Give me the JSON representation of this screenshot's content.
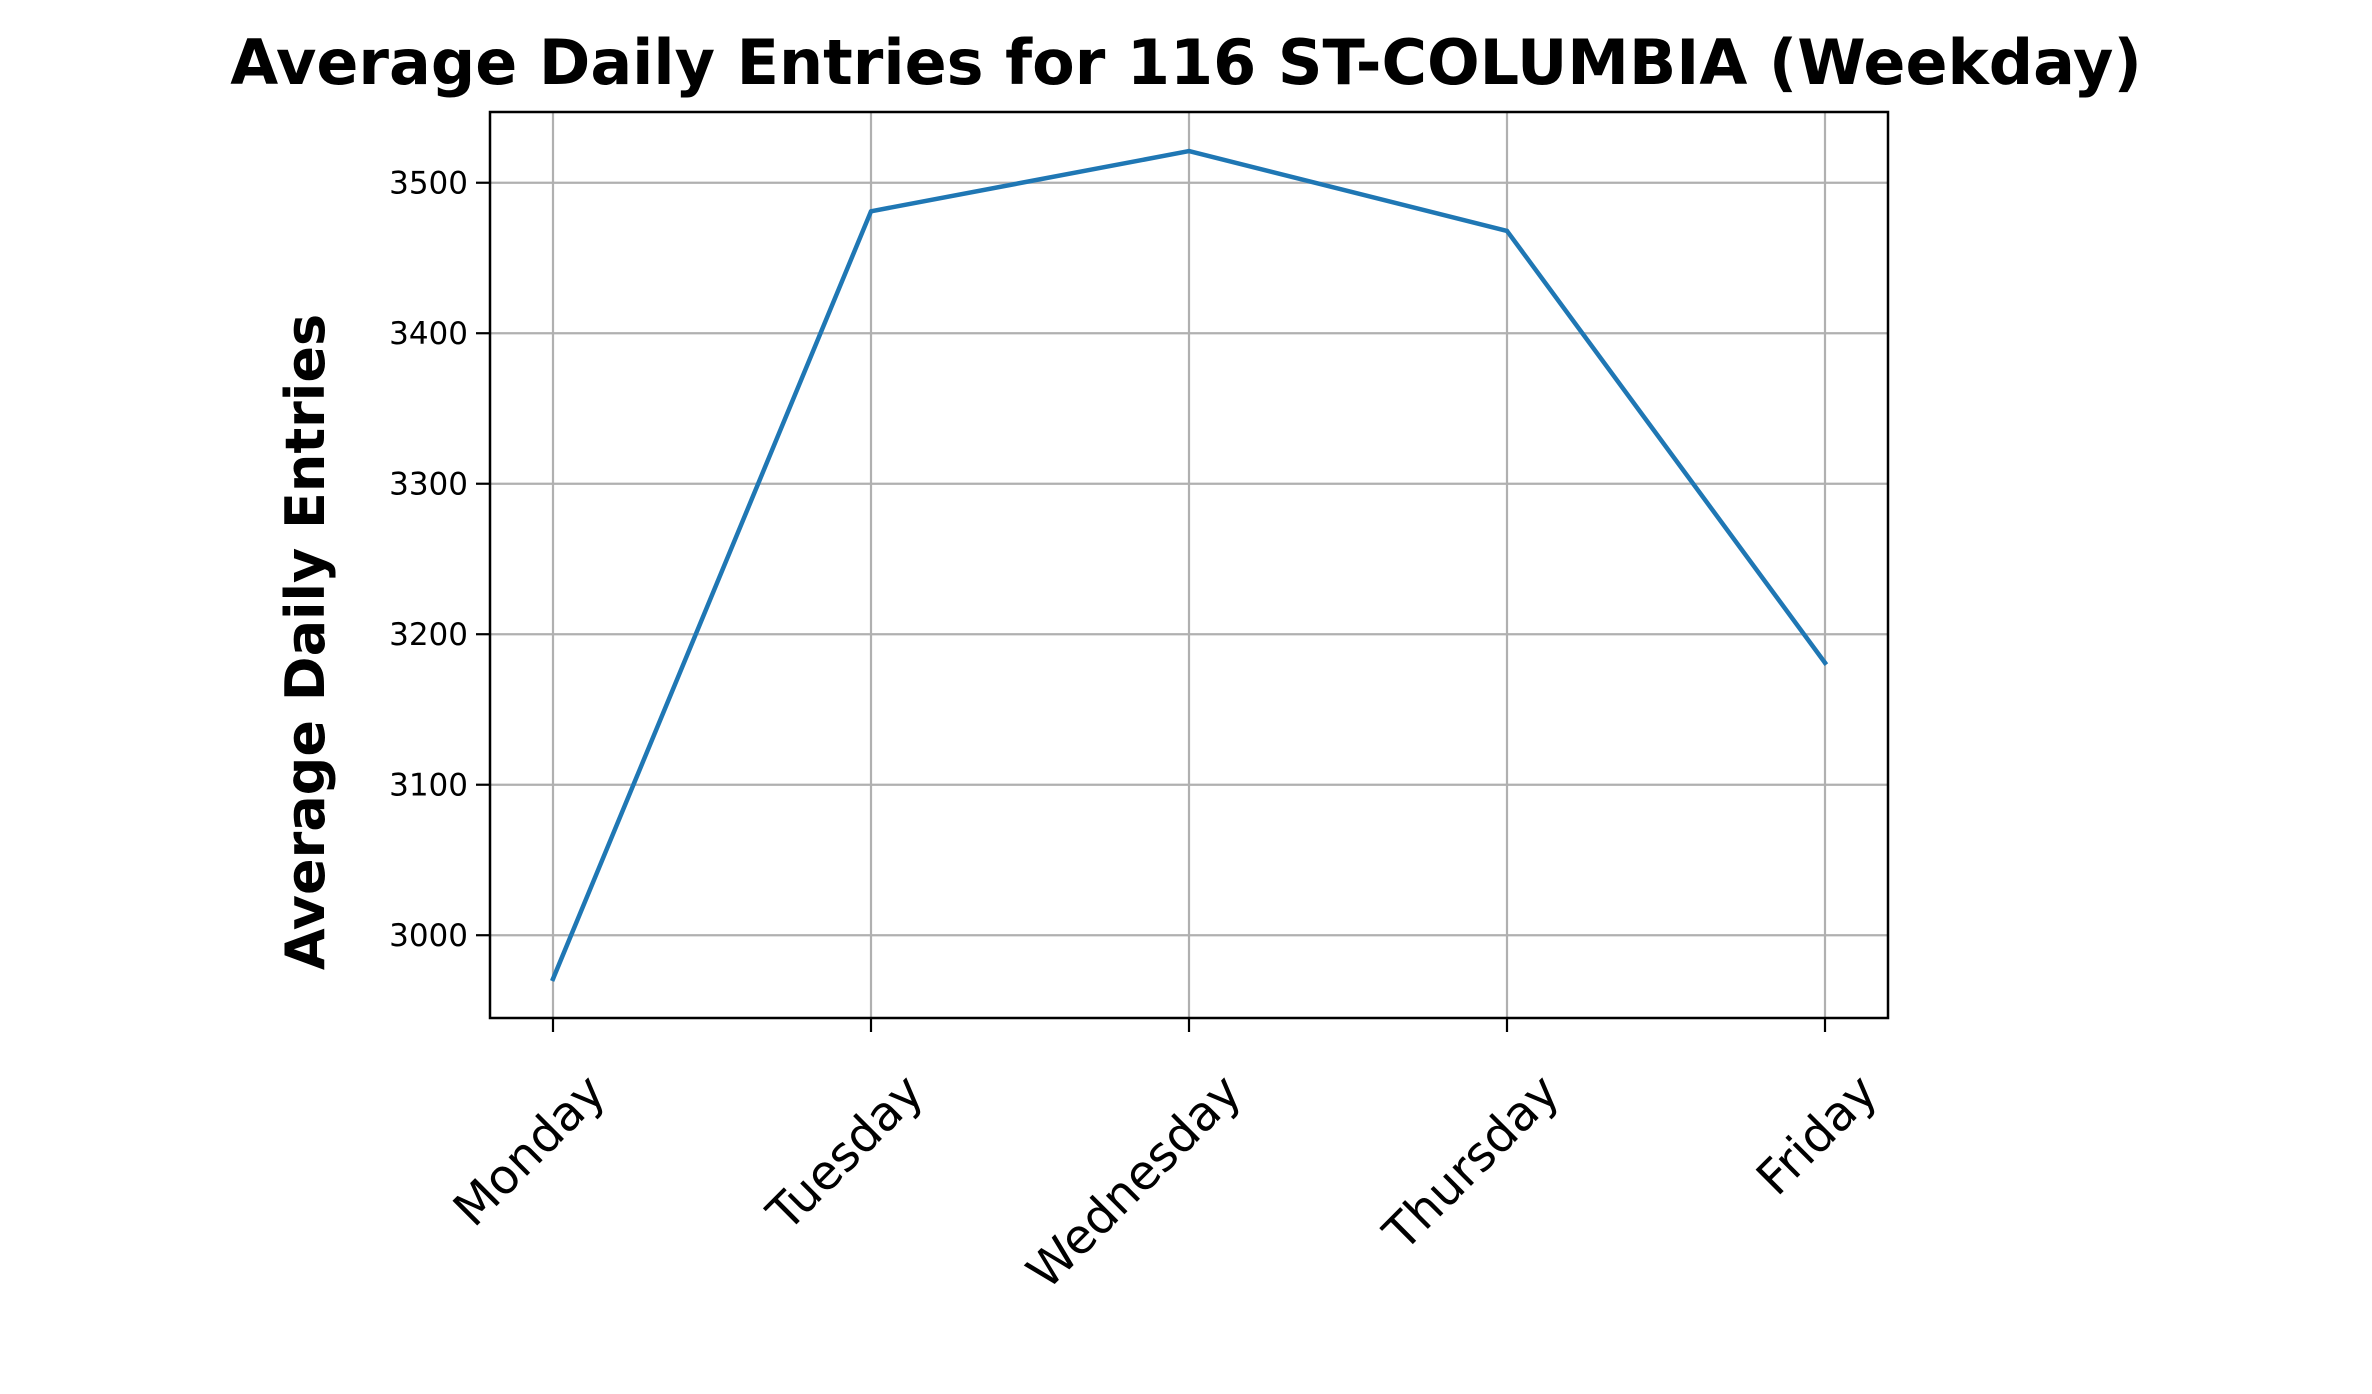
{
  "chart_data": {
    "type": "line",
    "title": "Average Daily Entries for 116 ST-COLUMBIA (Weekday)",
    "xlabel": "",
    "ylabel": "Average Daily Entries",
    "categories": [
      "Monday",
      "Tuesday",
      "Wednesday",
      "Thursday",
      "Friday"
    ],
    "series": [
      {
        "values": [
          2971,
          3481,
          3521,
          3468,
          3181
        ]
      }
    ],
    "yticks": [
      3000,
      3100,
      3200,
      3300,
      3400,
      3500
    ],
    "ylim": [
      2945,
      3547
    ],
    "grid": true,
    "legend": "none",
    "colors": {
      "line": "#1f77b4",
      "grid": "#b0b0b0",
      "axes": "#000000"
    }
  }
}
